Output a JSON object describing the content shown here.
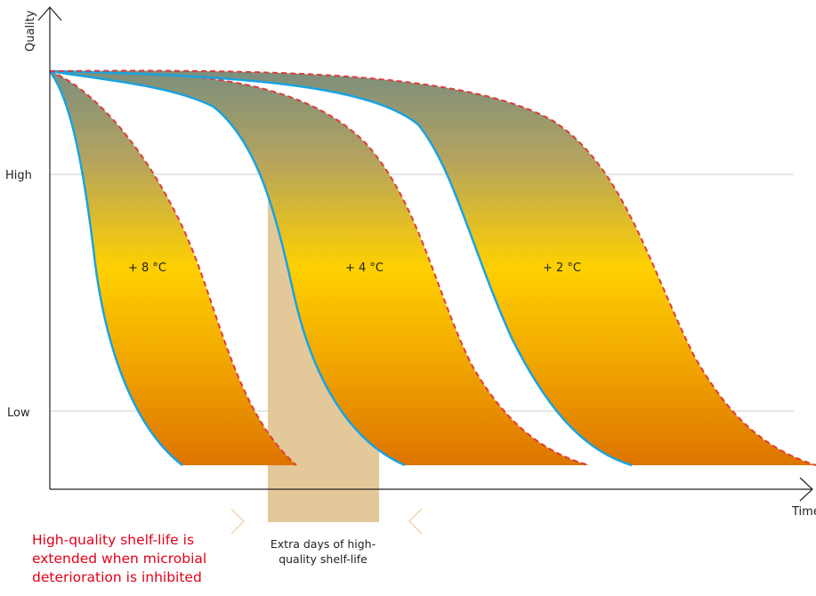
{
  "chart_data": {
    "type": "area",
    "title": "",
    "xlabel": "Time",
    "ylabel": "Quality",
    "y_ticks": [
      "High",
      "Low"
    ],
    "grid": true,
    "series": [
      {
        "name": "+ 8 °C"
      },
      {
        "name": "+ 4 °C"
      },
      {
        "name": "+ 2 °C"
      }
    ],
    "highlight": {
      "label": "Extra days of high-quality shelf-life"
    },
    "callout": "High-quality shelf-life is extended when microbial deterioration is inhibited",
    "colors": {
      "gradient_top": "#7c8f7c",
      "gradient_mid": "#ffd000",
      "gradient_bottom": "#dd7400",
      "inner_edge": "#1aa3e0",
      "outer_edge": "#e03a3a",
      "highlight": "#e3c89a",
      "callout": "#e2001a",
      "grid": "#cccccc"
    }
  },
  "text": {
    "y_axis_label": "Quality",
    "x_axis_label": "Time",
    "high_label": "High",
    "low_label": "Low",
    "band_8": "+ 8 °C",
    "band_4": "+ 4 °C",
    "band_2": "+ 2 °C",
    "extra_line1": "Extra days of high-",
    "extra_line2": "quality shelf-life",
    "callout_line1": "High-quality shelf-life is",
    "callout_line2": "extended when microbial",
    "callout_line3": "deterioration is inhibited"
  }
}
